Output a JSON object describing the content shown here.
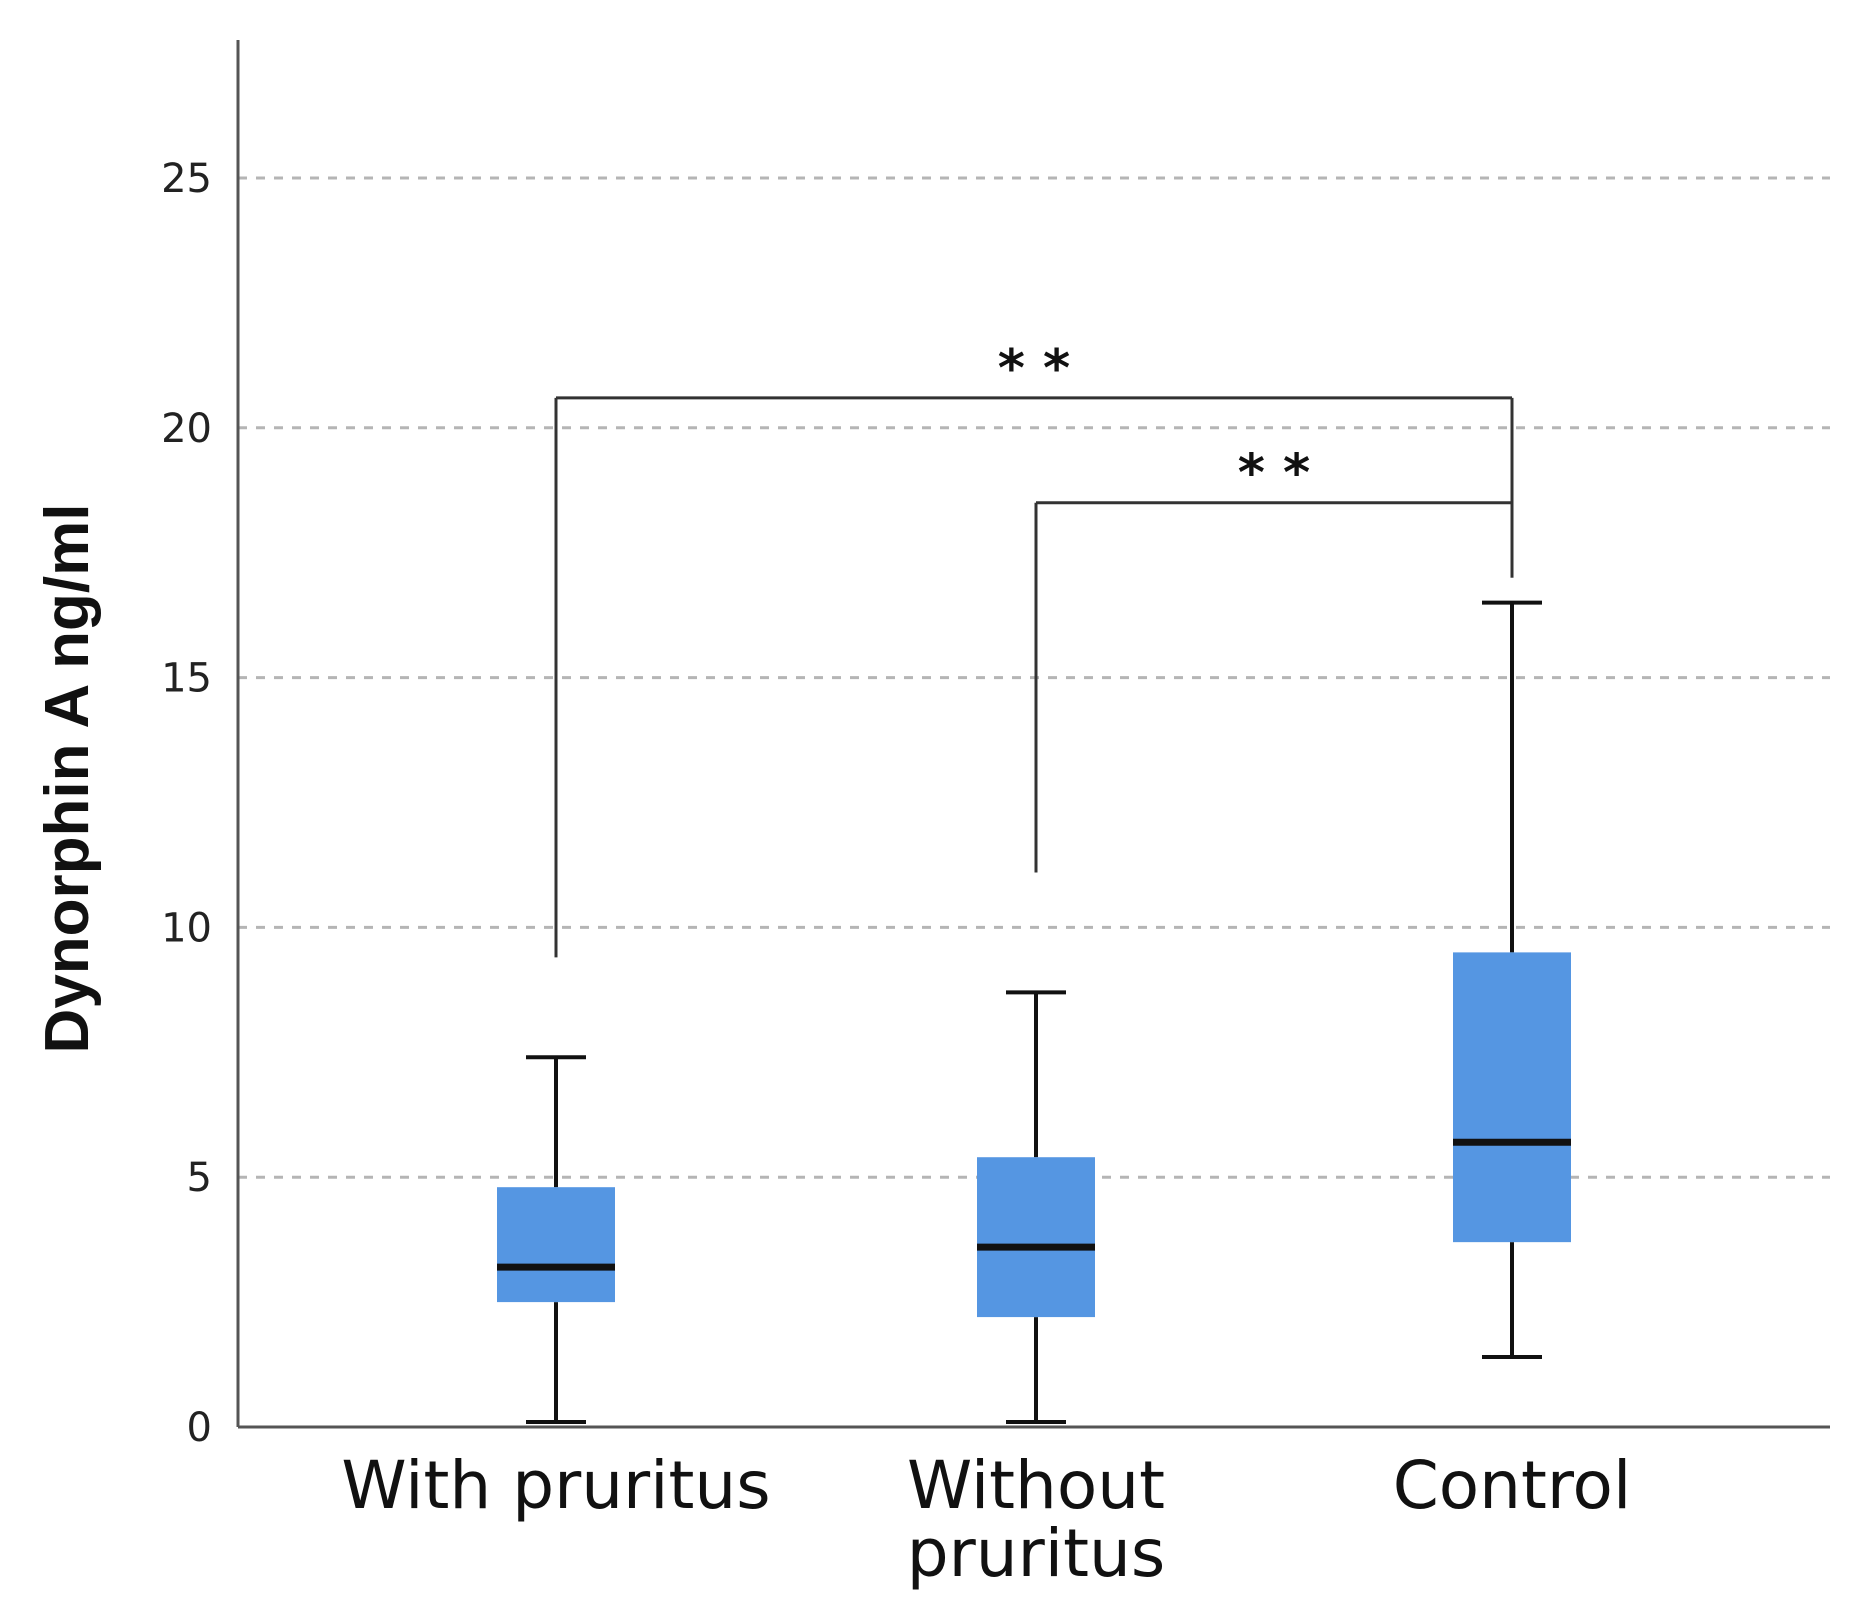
{
  "chart_data": {
    "type": "boxplot",
    "title": "",
    "xlabel": "",
    "ylabel": "Dynorphin A ng/ml",
    "ylim": [
      0,
      28
    ],
    "yticks": [
      0,
      5,
      10,
      15,
      20,
      25
    ],
    "grid": "horizontal dashed",
    "box_color": "#5596e2",
    "categories": [
      {
        "label_lines": [
          "With pruritus"
        ],
        "whisker_low": 0.1,
        "q1": 2.5,
        "median": 3.2,
        "q3": 4.8,
        "whisker_high": 7.4
      },
      {
        "label_lines": [
          "Without",
          "pruritus"
        ],
        "whisker_low": 0.1,
        "q1": 2.2,
        "median": 3.6,
        "q3": 5.4,
        "whisker_high": 8.7
      },
      {
        "label_lines": [
          "Control"
        ],
        "whisker_low": 1.4,
        "q1": 3.7,
        "median": 5.7,
        "q3": 9.5,
        "whisker_high": 16.5
      }
    ],
    "significance": [
      {
        "from": 0,
        "to": 2,
        "level": 20.6,
        "label": "* *"
      },
      {
        "from": 1,
        "to": 2,
        "level": 18.5,
        "label": "* *"
      }
    ]
  }
}
